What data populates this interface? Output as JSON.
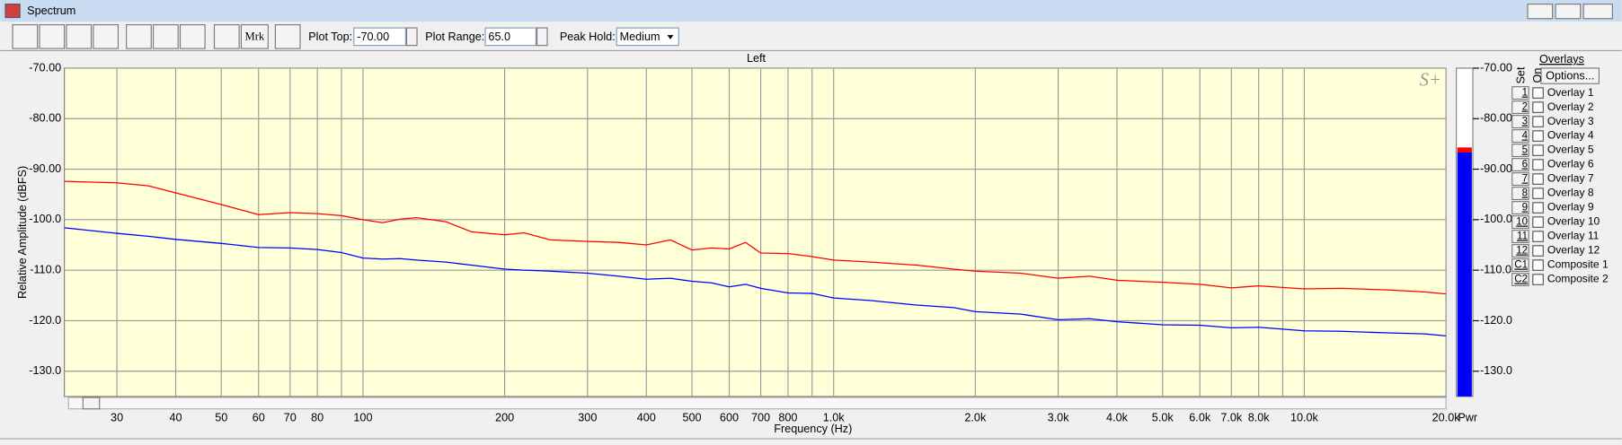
{
  "window": {
    "title": "Spectrum"
  },
  "toolbar": {
    "marker_button": "Mrk",
    "plot_top_label": "Plot Top:",
    "plot_top": "-70.00",
    "plot_range_label": "Plot Range:",
    "plot_range": "65.0",
    "peak_hold_label": "Peak Hold:",
    "peak_hold": "Medium"
  },
  "chart_data": {
    "type": "line",
    "title": "Left",
    "watermark": "S+",
    "x_label": "Frequency (Hz)",
    "y_label": "Relative Amplitude (dBFS)",
    "x_scale": "log",
    "grid": true,
    "background": "#ffffd8",
    "xlim": [
      23.2,
      20000
    ],
    "ylim": [
      -135,
      -70
    ],
    "xticks": [
      30,
      40,
      50,
      60,
      70,
      80,
      100,
      200,
      300,
      400,
      500,
      600,
      700,
      800,
      {
        "value": 1000,
        "label": "1.0k"
      },
      {
        "value": 2000,
        "label": "2.0k"
      },
      {
        "value": 3000,
        "label": "3.0k"
      },
      {
        "value": 4000,
        "label": "4.0k"
      },
      {
        "value": 5000,
        "label": "5.0k"
      },
      {
        "value": 6000,
        "label": "6.0k"
      },
      {
        "value": 7000,
        "label": "7.0k"
      },
      {
        "value": 8000,
        "label": "8.0k"
      },
      {
        "value": 10000,
        "label": "10.0k"
      },
      {
        "value": 20000,
        "label": "20.0k"
      }
    ],
    "xgrid_unlabeled": [
      90,
      900,
      9000
    ],
    "yticks": [
      {
        "value": -70,
        "label": "-70.00"
      },
      {
        "value": -80,
        "label": "-80.00"
      },
      {
        "value": -90,
        "label": "-90.00"
      },
      {
        "value": -100,
        "label": "-100.0"
      },
      {
        "value": -110,
        "label": "-110.0"
      },
      {
        "value": -120,
        "label": "-120.0"
      },
      {
        "value": -130,
        "label": "-130.0"
      }
    ],
    "x": [
      23.2,
      30,
      35,
      40,
      50,
      60,
      70,
      80,
      90,
      100,
      110,
      120,
      130,
      150,
      170,
      200,
      220,
      250,
      300,
      350,
      400,
      450,
      500,
      550,
      600,
      650,
      700,
      800,
      900,
      1000,
      1200,
      1500,
      1800,
      2000,
      2500,
      3000,
      3500,
      4000,
      5000,
      6000,
      7000,
      8000,
      10000,
      12000,
      15000,
      18000,
      20000
    ],
    "series": [
      {
        "color": "#ff0000",
        "values": [
          -92.4,
          -92.7,
          -93.3,
          -94.7,
          -97.0,
          -99.0,
          -98.6,
          -98.8,
          -99.2,
          -100.0,
          -100.6,
          -99.9,
          -99.6,
          -100.4,
          -102.4,
          -103.0,
          -102.6,
          -104.0,
          -104.3,
          -104.5,
          -105.0,
          -104.0,
          -106.0,
          -105.6,
          -105.8,
          -104.5,
          -106.6,
          -106.7,
          -107.3,
          -108.0,
          -108.4,
          -109.0,
          -109.8,
          -110.2,
          -110.6,
          -111.6,
          -111.2,
          -112.0,
          -112.4,
          -112.8,
          -113.5,
          -113.1,
          -113.7,
          -113.6,
          -113.9,
          -114.3,
          -114.7
        ]
      },
      {
        "color": "#0000ff",
        "values": [
          -101.6,
          -102.7,
          -103.3,
          -103.9,
          -104.7,
          -105.5,
          -105.6,
          -105.9,
          -106.5,
          -107.6,
          -107.8,
          -107.7,
          -108.0,
          -108.4,
          -109.0,
          -109.8,
          -110.0,
          -110.2,
          -110.6,
          -111.2,
          -111.8,
          -111.6,
          -112.2,
          -112.5,
          -113.3,
          -112.8,
          -113.6,
          -114.5,
          -114.6,
          -115.5,
          -116.0,
          -116.9,
          -117.4,
          -118.2,
          -118.7,
          -119.8,
          -119.6,
          -120.2,
          -120.8,
          -120.9,
          -121.4,
          -121.3,
          -122.0,
          -122.1,
          -122.4,
          -122.6,
          -123.0
        ]
      }
    ]
  },
  "meter": {
    "label": "Pwr",
    "ylim": [
      -135,
      -70
    ],
    "level": -86.7,
    "peak": -85.7,
    "color": "#0000ff",
    "peak_color": "#ff0000",
    "yticks": [
      {
        "value": -70,
        "label": "-70.00"
      },
      {
        "value": -80,
        "label": "-80.00"
      },
      {
        "value": -90,
        "label": "-90.00"
      },
      {
        "value": -100,
        "label": "-100.0"
      },
      {
        "value": -110,
        "label": "-110.0"
      },
      {
        "value": -120,
        "label": "-120.0"
      },
      {
        "value": -130,
        "label": "-130.0"
      }
    ]
  },
  "overlays": {
    "title": "Overlays",
    "options_button": "Options...",
    "set_header": "Set",
    "on_header": "On",
    "rows": [
      {
        "set": "1",
        "name": "Overlay 1",
        "color": "#1a9a1a"
      },
      {
        "set": "2",
        "name": "Overlay 2",
        "color": "#1aa0a8"
      },
      {
        "set": "3",
        "name": "Overlay 3",
        "color": "#7a1aa0"
      },
      {
        "set": "4",
        "name": "Overlay 4",
        "color": "#e020e0"
      },
      {
        "set": "5",
        "name": "Overlay 5",
        "color": "#a0501a"
      },
      {
        "set": "6",
        "name": "Overlay 6",
        "color": "#f08848"
      },
      {
        "set": "7",
        "name": "Overlay 7",
        "color": "#40dc60"
      },
      {
        "set": "8",
        "name": "Overlay 8",
        "color": "#80d8f0"
      },
      {
        "set": "9",
        "name": "Overlay 9",
        "color": "#d8b830"
      },
      {
        "set": "10",
        "name": "Overlay 10",
        "color": "#f0a0f0"
      },
      {
        "set": "11",
        "name": "Overlay 11",
        "color": "#8a8a1a"
      },
      {
        "set": "12",
        "name": "Overlay 12",
        "color": "#f0a848"
      },
      {
        "set": "C1",
        "name": "Composite 1",
        "color": "#000000"
      },
      {
        "set": "C2",
        "name": "Composite 2",
        "color": "#808080"
      }
    ]
  }
}
